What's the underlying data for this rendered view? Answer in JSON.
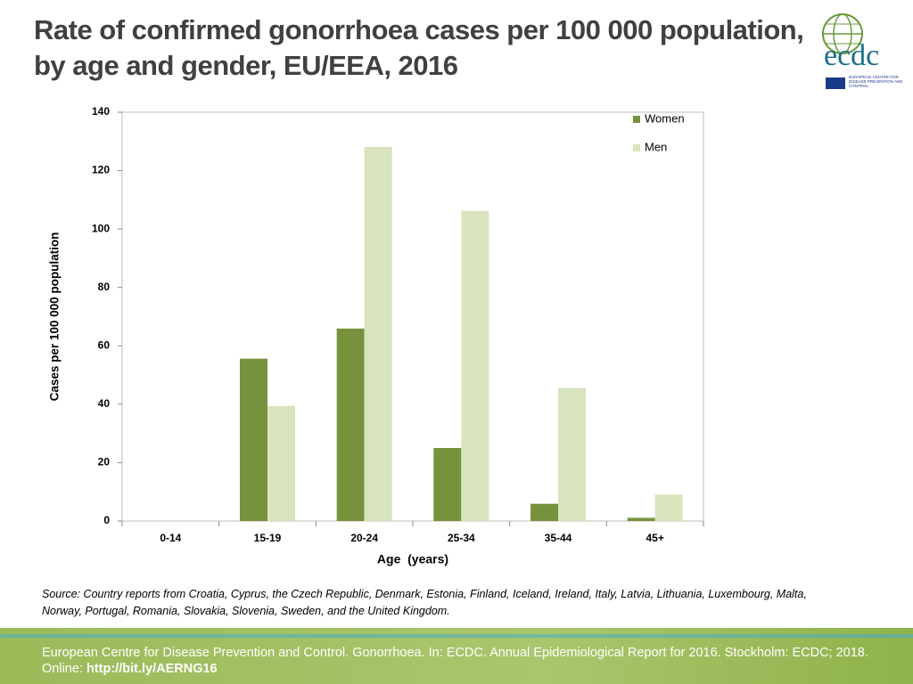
{
  "title": "Rate of confirmed gonorrhoea cases per 100 000 population, by age and gender, EU/EEA, 2016",
  "logo": {
    "name": "ecdc",
    "tagline": "EUROPEAN CENTRE FOR DISEASE PREVENTION AND CONTROL"
  },
  "chart_data": {
    "type": "bar",
    "x_label": "Age  (years)",
    "y_label": "Cases per 100 000 population",
    "categories": [
      "0-14",
      "15-19",
      "20-24",
      "25-34",
      "35-44",
      "45+"
    ],
    "series": [
      {
        "name": "Women",
        "color": "#76923c",
        "values": [
          0,
          55.6,
          65.9,
          25,
          5.9,
          1.1
        ]
      },
      {
        "name": "Men",
        "color": "#d7e4bd",
        "values": [
          0,
          39.4,
          128.1,
          106.2,
          45.5,
          9.1
        ]
      }
    ],
    "ylim": [
      0,
      140
    ],
    "yticks": [
      0,
      20,
      40,
      60,
      80,
      100,
      120,
      140
    ],
    "grid": false,
    "legend": "top-right"
  },
  "source": "Source: Country reports from Croatia, Cyprus, the Czech Republic, Denmark, Estonia, Finland, Iceland, Ireland, Italy, Latvia, Lithuania, Luxembourg, Malta, Norway, Portugal, Romania, Slovakia, Slovenia, Sweden, and the United Kingdom.",
  "footer": {
    "citation": "European Centre for Disease Prevention and Control. Gonorrhoea. In: ECDC. Annual Epidemiological Report for 2016. Stockholm: ECDC; 2018. Online:",
    "link": "http://bit.ly/AERNG16"
  }
}
